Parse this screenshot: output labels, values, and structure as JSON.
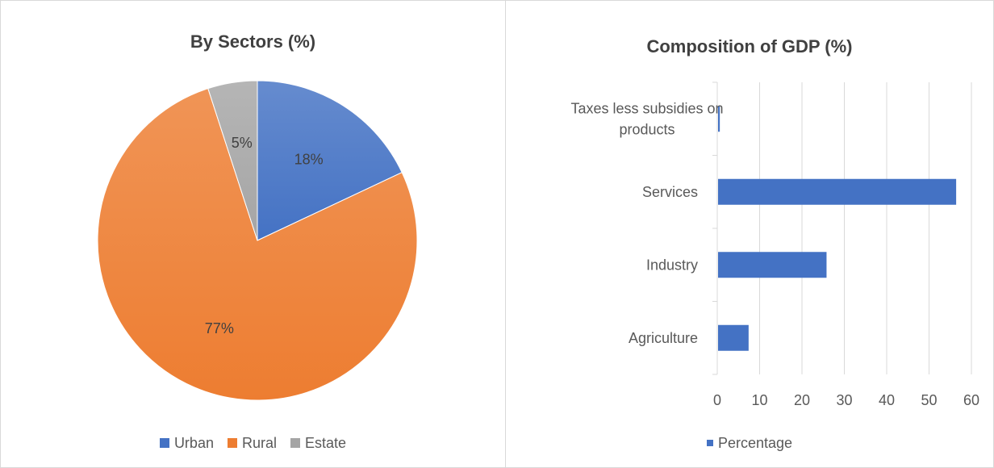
{
  "chart_data": [
    {
      "type": "pie",
      "title": "By Sectors (%)",
      "slices": [
        {
          "label": "Urban",
          "value": 18,
          "display": "18%",
          "color": "#4472c4"
        },
        {
          "label": "Rural",
          "value": 77,
          "display": "77%",
          "color": "#ed7d31"
        },
        {
          "label": "Estate",
          "value": 5,
          "display": "5%",
          "color": "#a5a5a5"
        }
      ],
      "legend_position": "bottom"
    },
    {
      "type": "bar",
      "orientation": "horizontal",
      "title": "Composition of GDP (%)",
      "categories": [
        "Taxes less subsidies on products",
        "Services",
        "Industry",
        "Agriculture"
      ],
      "category_lines": [
        [
          "Taxes less subsidies on",
          "products"
        ],
        [
          "Services"
        ],
        [
          "Industry"
        ],
        [
          "Agriculture"
        ]
      ],
      "series": [
        {
          "name": "Percentage",
          "values": [
            0.6,
            56.4,
            25.8,
            7.4
          ],
          "color": "#4472c4"
        }
      ],
      "xlim": [
        0,
        60
      ],
      "xticks": [
        "0",
        "10",
        "20",
        "30",
        "40",
        "50",
        "60"
      ],
      "grid": "vertical",
      "legend_position": "bottom"
    }
  ]
}
